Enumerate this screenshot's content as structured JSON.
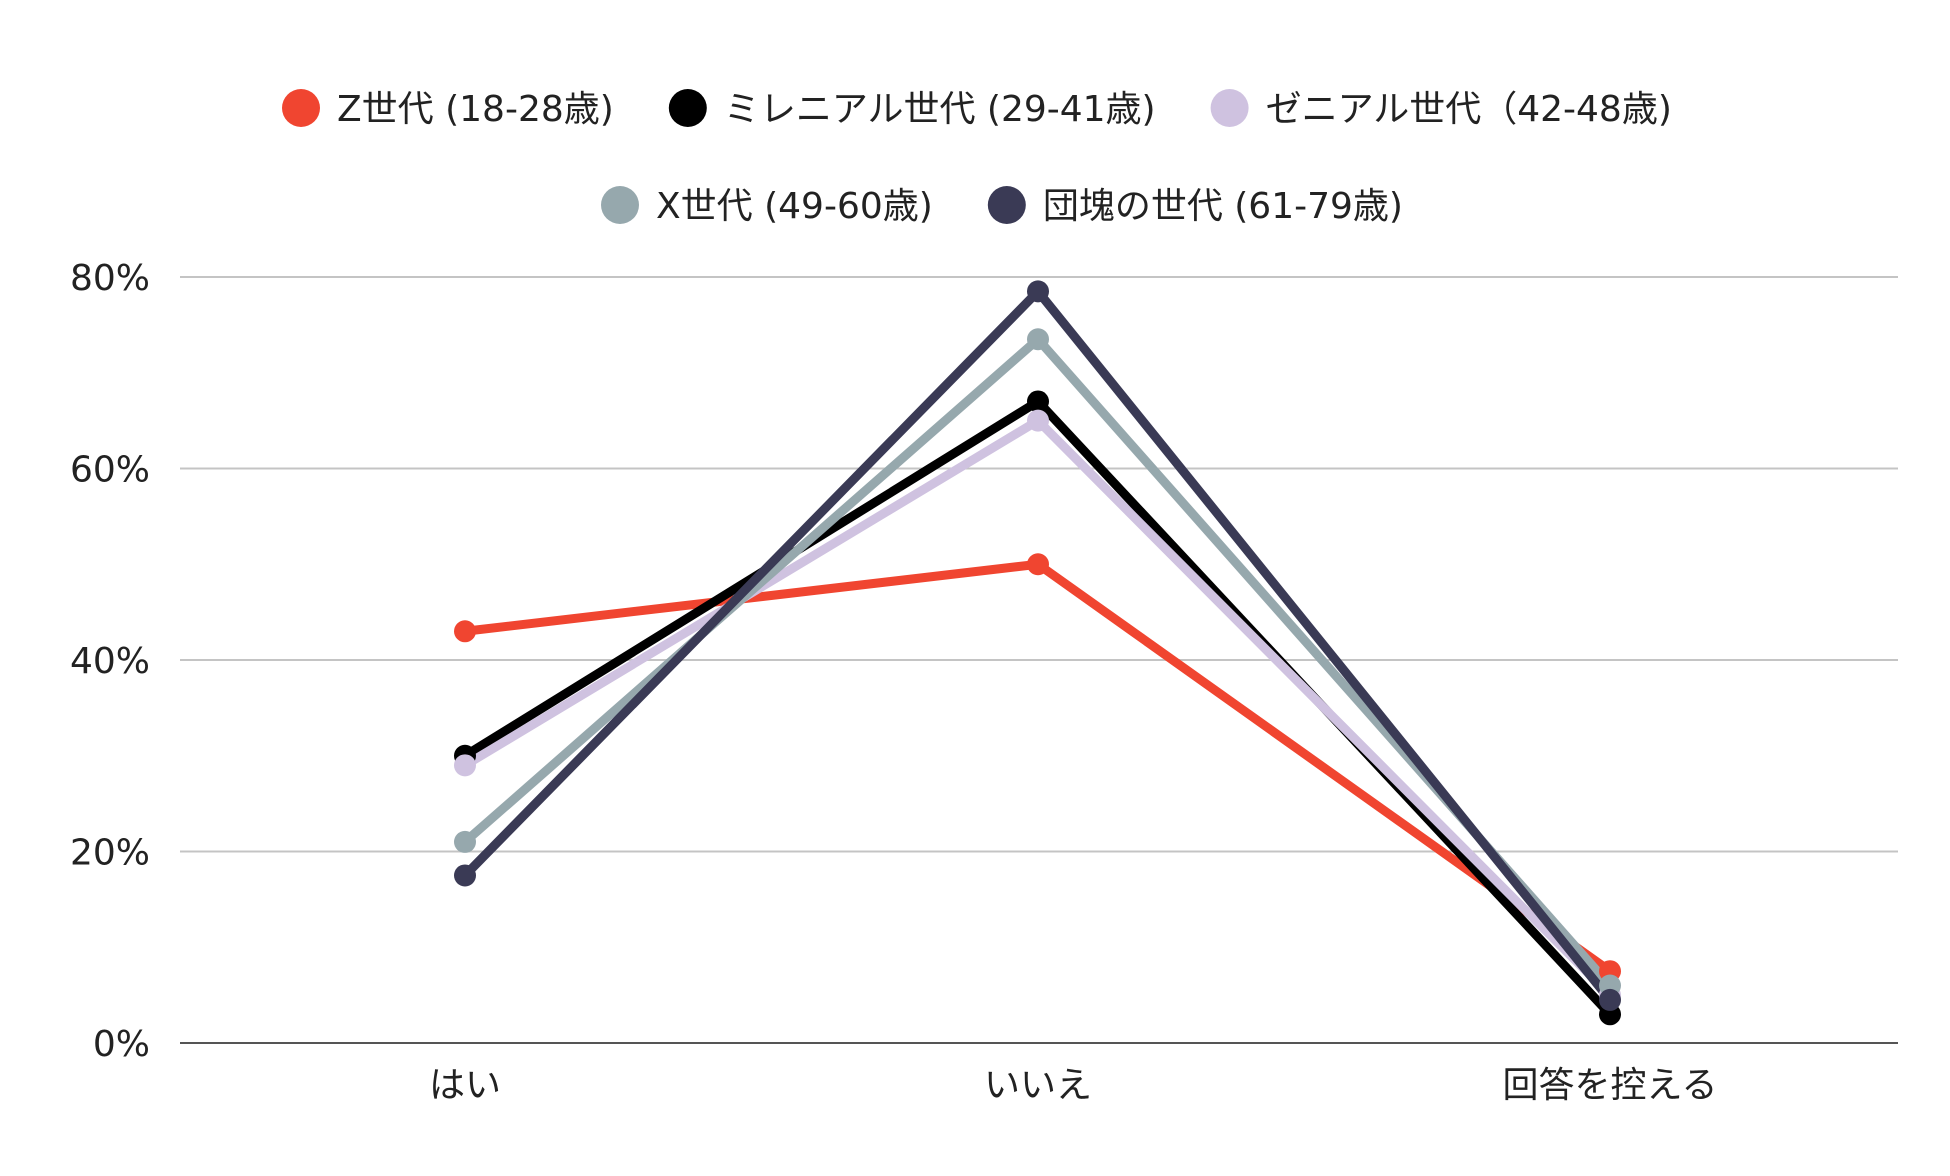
{
  "chart_data": {
    "type": "line",
    "title": "",
    "xlabel": "",
    "ylabel": "",
    "categories": [
      "はい",
      "いいえ",
      "回答を控える"
    ],
    "ylim": [
      0,
      80
    ],
    "yticks": [
      0,
      20,
      40,
      60,
      80
    ],
    "ytick_labels": [
      "0%",
      "20%",
      "40%",
      "60%",
      "80%"
    ],
    "grid": true,
    "legend_position": "top-center",
    "series": [
      {
        "name": "Z世代 (18-28歳)",
        "color": "#f04530",
        "values": [
          43,
          50,
          7.5
        ]
      },
      {
        "name": "ミレニアル世代 (29-41歳)",
        "color": "#000000",
        "values": [
          30,
          67,
          3
        ]
      },
      {
        "name": "ゼニアル世代（42-48歳)",
        "color": "#cfc2e0",
        "values": [
          29,
          65,
          5
        ]
      },
      {
        "name": "X世代 (49-60歳)",
        "color": "#96a8ad",
        "values": [
          21,
          73.5,
          6
        ]
      },
      {
        "name": "団塊の世代 (61-79歳)",
        "color": "#3a3a55",
        "values": [
          17.5,
          78.5,
          4.5
        ]
      }
    ]
  }
}
